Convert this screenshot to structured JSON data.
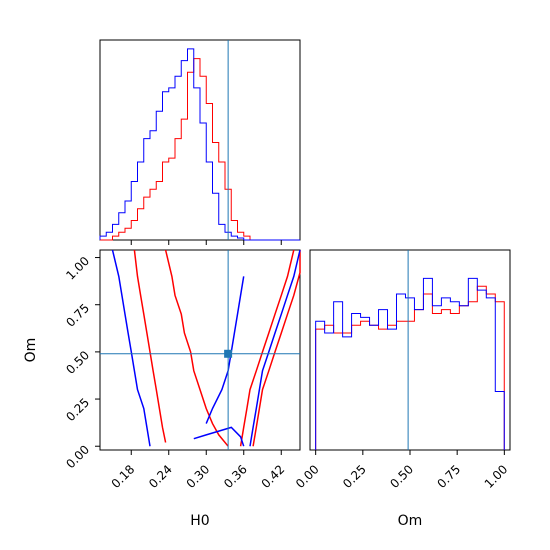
{
  "chart_data": {
    "type": "corner",
    "parameters": [
      "H0",
      "Om"
    ],
    "truths": {
      "H0": 0.335,
      "Om": 0.49
    },
    "colors": {
      "red": "#ff0000",
      "blue": "#0000ff",
      "truth": "#1f77b4"
    },
    "panels": [
      {
        "id": "H0-marginal",
        "type": "histogram",
        "xlim": [
          0.13,
          0.45
        ],
        "bin_width": 0.01,
        "series": [
          {
            "color": "#ff0000",
            "bins_start": 0.13,
            "values": [
              0,
              0,
              0.02,
              0.04,
              0.06,
              0.1,
              0.16,
              0.22,
              0.26,
              0.3,
              0.4,
              0.42,
              0.52,
              0.62,
              0.86,
              0.93,
              0.84,
              0.7,
              0.5,
              0.4,
              0.26,
              0.1,
              0.04,
              0.02,
              0,
              0,
              0,
              0,
              0,
              0,
              0,
              0
            ]
          },
          {
            "color": "#0000ff",
            "bins_start": 0.13,
            "values": [
              0.02,
              0.04,
              0.08,
              0.14,
              0.2,
              0.3,
              0.4,
              0.52,
              0.56,
              0.66,
              0.76,
              0.78,
              0.84,
              0.92,
              0.98,
              0.78,
              0.6,
              0.4,
              0.24,
              0.08,
              0.04,
              0.02,
              0.01,
              0,
              0,
              0,
              0,
              0,
              0,
              0,
              0,
              0
            ]
          }
        ],
        "truth_line": 0.335
      },
      {
        "id": "H0-Om-contours",
        "type": "contour",
        "xlim": [
          0.13,
          0.45
        ],
        "ylim": [
          -0.02,
          1.04
        ],
        "x_ticks": [
          "0.18",
          "0.24",
          "0.30",
          "0.36",
          "0.42"
        ],
        "x_tick_values": [
          0.18,
          0.24,
          0.3,
          0.36,
          0.42
        ],
        "y_ticks": [
          "0.00",
          "0.25",
          "0.50",
          "0.75",
          "1.00"
        ],
        "y_tick_values": [
          0,
          0.25,
          0.5,
          0.75,
          1.0
        ],
        "xlabel": "H0",
        "ylabel": "Om",
        "truth_point": [
          0.335,
          0.49
        ],
        "series": [
          {
            "color": "#ff0000",
            "paths": [
              [
                [
                  0.185,
                  1.04
                ],
                [
                  0.19,
                  0.9
                ],
                [
                  0.195,
                  0.8
                ],
                [
                  0.2,
                  0.7
                ],
                [
                  0.205,
                  0.6
                ],
                [
                  0.21,
                  0.5
                ],
                [
                  0.215,
                  0.4
                ],
                [
                  0.22,
                  0.3
                ],
                [
                  0.225,
                  0.2
                ],
                [
                  0.23,
                  0.1
                ],
                [
                  0.235,
                  0.02
                ]
              ],
              [
                [
                  0.235,
                  1.04
                ],
                [
                  0.245,
                  0.9
                ],
                [
                  0.25,
                  0.8
                ],
                [
                  0.26,
                  0.7
                ],
                [
                  0.265,
                  0.6
                ],
                [
                  0.275,
                  0.5
                ],
                [
                  0.28,
                  0.4
                ],
                [
                  0.29,
                  0.3
                ],
                [
                  0.3,
                  0.2
                ],
                [
                  0.31,
                  0.12
                ],
                [
                  0.32,
                  0.06
                ],
                [
                  0.335,
                  0.0
                ]
              ],
              [
                [
                  0.44,
                  1.04
                ],
                [
                  0.43,
                  0.9
                ],
                [
                  0.42,
                  0.8
                ],
                [
                  0.41,
                  0.7
                ],
                [
                  0.4,
                  0.6
                ],
                [
                  0.39,
                  0.5
                ],
                [
                  0.38,
                  0.4
                ],
                [
                  0.37,
                  0.3
                ],
                [
                  0.365,
                  0.2
                ],
                [
                  0.36,
                  0.1
                ],
                [
                  0.355,
                  0.0
                ]
              ],
              [
                [
                  0.46,
                  1.04
                ],
                [
                  0.45,
                  0.92
                ],
                [
                  0.44,
                  0.8
                ],
                [
                  0.43,
                  0.7
                ],
                [
                  0.42,
                  0.6
                ],
                [
                  0.41,
                  0.5
                ],
                [
                  0.4,
                  0.4
                ],
                [
                  0.39,
                  0.3
                ],
                [
                  0.385,
                  0.2
                ],
                [
                  0.38,
                  0.1
                ],
                [
                  0.375,
                  0.0
                ]
              ]
            ]
          },
          {
            "color": "#0000ff",
            "paths": [
              [
                [
                  0.15,
                  1.04
                ],
                [
                  0.16,
                  0.9
                ],
                [
                  0.165,
                  0.8
                ],
                [
                  0.17,
                  0.7
                ],
                [
                  0.175,
                  0.6
                ],
                [
                  0.18,
                  0.5
                ],
                [
                  0.185,
                  0.4
                ],
                [
                  0.19,
                  0.3
                ],
                [
                  0.2,
                  0.2
                ],
                [
                  0.205,
                  0.1
                ],
                [
                  0.21,
                  0.0
                ]
              ],
              [
                [
                  0.28,
                  0.04
                ],
                [
                  0.3,
                  0.06
                ],
                [
                  0.32,
                  0.08
                ],
                [
                  0.34,
                  0.1
                ],
                [
                  0.355,
                  0.05
                ],
                [
                  0.36,
                  0.0
                ]
              ],
              [
                [
                  0.45,
                  1.04
                ],
                [
                  0.44,
                  0.9
                ],
                [
                  0.43,
                  0.8
                ],
                [
                  0.42,
                  0.7
                ],
                [
                  0.41,
                  0.6
                ],
                [
                  0.4,
                  0.5
                ],
                [
                  0.39,
                  0.4
                ],
                [
                  0.385,
                  0.3
                ],
                [
                  0.38,
                  0.2
                ],
                [
                  0.375,
                  0.1
                ],
                [
                  0.37,
                  0.0
                ]
              ],
              [
                [
                  0.36,
                  0.9
                ],
                [
                  0.355,
                  0.8
                ],
                [
                  0.35,
                  0.7
                ],
                [
                  0.345,
                  0.6
                ],
                [
                  0.34,
                  0.5
                ],
                [
                  0.335,
                  0.4
                ],
                [
                  0.325,
                  0.3
                ],
                [
                  0.31,
                  0.2
                ],
                [
                  0.3,
                  0.12
                ]
              ]
            ]
          }
        ]
      },
      {
        "id": "Om-marginal",
        "type": "histogram",
        "xlim": [
          -0.03,
          1.03
        ],
        "x_ticks": [
          "0.00",
          "0.25",
          "0.50",
          "0.75",
          "1.00"
        ],
        "x_tick_values": [
          0,
          0.25,
          0.5,
          0.75,
          1.0
        ],
        "xlabel": "Om",
        "bin_width": 0.0476,
        "series": [
          {
            "color": "#ff0000",
            "bins_start": 0.0,
            "values": [
              0.62,
              0.64,
              0.6,
              0.6,
              0.64,
              0.66,
              0.64,
              0.62,
              0.64,
              0.66,
              0.66,
              0.72,
              0.8,
              0.7,
              0.72,
              0.7,
              0.74,
              0.76,
              0.84,
              0.8,
              0.76
            ]
          },
          {
            "color": "#0000ff",
            "bins_start": 0.0,
            "values": [
              0.66,
              0.6,
              0.76,
              0.58,
              0.7,
              0.68,
              0.64,
              0.72,
              0.62,
              0.8,
              0.78,
              0.72,
              0.88,
              0.74,
              0.78,
              0.76,
              0.74,
              0.88,
              0.82,
              0.78,
              0.3
            ]
          }
        ],
        "truth_line": 0.49
      }
    ]
  }
}
